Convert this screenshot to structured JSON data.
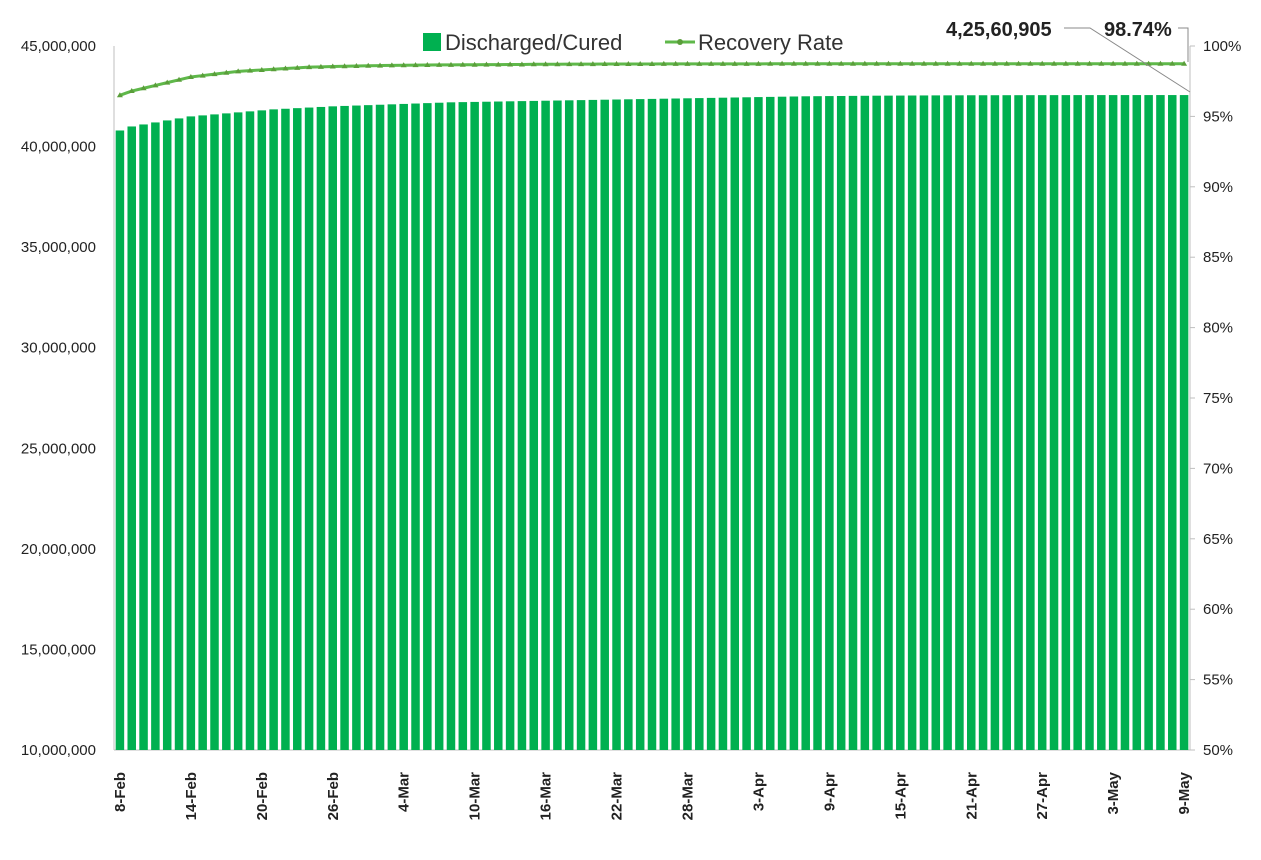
{
  "chart_data": {
    "type": "bar",
    "legend": {
      "position": "top",
      "bars_label": "Discharged/Cured",
      "line_label": "Recovery Rate"
    },
    "colors": {
      "bar": "#00b050",
      "line": "#5fb84a",
      "marker": "#5a9e3a"
    },
    "callouts": {
      "last_value": "4,25,60,905",
      "last_rate": "98.74%"
    },
    "x_tick_labels": [
      "8-Feb",
      "14-Feb",
      "20-Feb",
      "26-Feb",
      "4-Mar",
      "10-Mar",
      "16-Mar",
      "22-Mar",
      "28-Mar",
      "3-Apr",
      "9-Apr",
      "15-Apr",
      "21-Apr",
      "27-Apr",
      "3-May",
      "9-May"
    ],
    "y_left": {
      "range": [
        10000000,
        45000000
      ],
      "ticks": [
        "10,000,000",
        "15,000,000",
        "20,000,000",
        "25,000,000",
        "30,000,000",
        "35,000,000",
        "40,000,000",
        "45,000,000"
      ]
    },
    "y_right": {
      "range": [
        50,
        100
      ],
      "ticks": [
        "50%",
        "55%",
        "60%",
        "65%",
        "70%",
        "75%",
        "80%",
        "85%",
        "90%",
        "95%",
        "100%"
      ]
    },
    "series": [
      {
        "name": "Discharged/Cured",
        "type": "bar",
        "x_start": "8-Feb",
        "x_end": "9-May",
        "points": 91,
        "values_approx": [
          40800000,
          41000000,
          41100000,
          41200000,
          41300000,
          41400000,
          41500000,
          41550000,
          41600000,
          41650000,
          41700000,
          41750000,
          41800000,
          41850000,
          41880000,
          41910000,
          41940000,
          41970000,
          42000000,
          42020000,
          42040000,
          42060000,
          42080000,
          42100000,
          42120000,
          42140000,
          42160000,
          42180000,
          42200000,
          42210000,
          42220000,
          42230000,
          42240000,
          42250000,
          42260000,
          42270000,
          42280000,
          42290000,
          42300000,
          42310000,
          42320000,
          42330000,
          42340000,
          42350000,
          42360000,
          42370000,
          42380000,
          42390000,
          42400000,
          42410000,
          42420000,
          42430000,
          42440000,
          42450000,
          42460000,
          42470000,
          42480000,
          42490000,
          42500000,
          42505000,
          42510000,
          42515000,
          42520000,
          42525000,
          42530000,
          42533000,
          42536000,
          42539000,
          42542000,
          42545000,
          42547000,
          42549000,
          42551000,
          42552000,
          42553000,
          42554000,
          42555000,
          42556000,
          42557000,
          42558000,
          42558500,
          42559000,
          42559500,
          42559800,
          42560000,
          42560200,
          42560400,
          42560600,
          42560700,
          42560800,
          42560905
        ]
      },
      {
        "name": "Recovery Rate",
        "type": "line",
        "axis": "right",
        "points": 91,
        "values_approx": [
          96.5,
          96.8,
          97.0,
          97.2,
          97.4,
          97.6,
          97.8,
          97.9,
          98.0,
          98.1,
          98.2,
          98.25,
          98.3,
          98.35,
          98.4,
          98.45,
          98.5,
          98.52,
          98.54,
          98.56,
          98.58,
          98.6,
          98.61,
          98.62,
          98.63,
          98.64,
          98.65,
          98.66,
          98.66,
          98.67,
          98.67,
          98.68,
          98.68,
          98.69,
          98.69,
          98.7,
          98.7,
          98.7,
          98.71,
          98.71,
          98.71,
          98.72,
          98.72,
          98.72,
          98.72,
          98.72,
          98.73,
          98.73,
          98.73,
          98.73,
          98.73,
          98.73,
          98.73,
          98.73,
          98.73,
          98.74,
          98.74,
          98.74,
          98.74,
          98.74,
          98.74,
          98.74,
          98.74,
          98.74,
          98.74,
          98.74,
          98.74,
          98.74,
          98.74,
          98.74,
          98.74,
          98.74,
          98.74,
          98.74,
          98.74,
          98.74,
          98.74,
          98.74,
          98.74,
          98.74,
          98.74,
          98.74,
          98.74,
          98.74,
          98.74,
          98.74,
          98.74,
          98.74,
          98.74,
          98.74,
          98.74
        ]
      }
    ]
  }
}
